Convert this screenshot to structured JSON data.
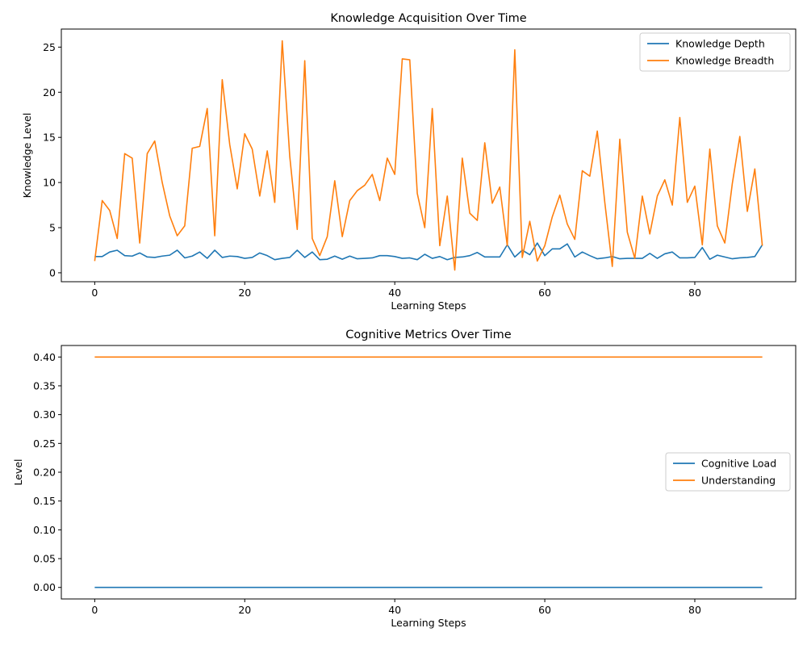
{
  "chart_data": [
    {
      "type": "line",
      "title": "Knowledge Acquisition Over Time",
      "xlabel": "Learning Steps",
      "ylabel": "Knowledge Level",
      "xlim": [
        -4.45,
        93.45
      ],
      "ylim": [
        -0.99,
        27.0
      ],
      "xticks": [
        0,
        20,
        40,
        60,
        80
      ],
      "yticks": [
        0,
        5,
        10,
        15,
        20,
        25
      ],
      "grid": false,
      "legend_position": "top-right",
      "x": [
        0,
        1,
        2,
        3,
        4,
        5,
        6,
        7,
        8,
        9,
        10,
        11,
        12,
        13,
        14,
        15,
        16,
        17,
        18,
        19,
        20,
        21,
        22,
        23,
        24,
        25,
        26,
        27,
        28,
        29,
        30,
        31,
        32,
        33,
        34,
        35,
        36,
        37,
        38,
        39,
        40,
        41,
        42,
        43,
        44,
        45,
        46,
        47,
        48,
        49,
        50,
        51,
        52,
        53,
        54,
        55,
        56,
        57,
        58,
        59,
        60,
        61,
        62,
        63,
        64,
        65,
        66,
        67,
        68,
        69,
        70,
        71,
        72,
        73,
        74,
        75,
        76,
        77,
        78,
        79,
        80,
        81,
        82,
        83,
        84,
        85,
        86,
        87,
        88,
        89
      ],
      "series": [
        {
          "name": "Knowledge Depth",
          "color": "#1f77b4",
          "values": [
            1.8,
            1.8,
            2.3,
            2.5,
            1.9,
            1.85,
            2.2,
            1.75,
            1.7,
            1.85,
            1.95,
            2.5,
            1.65,
            1.85,
            2.3,
            1.6,
            2.5,
            1.7,
            1.85,
            1.8,
            1.6,
            1.7,
            2.2,
            1.9,
            1.45,
            1.6,
            1.7,
            2.5,
            1.7,
            2.3,
            1.45,
            1.5,
            1.85,
            1.5,
            1.85,
            1.55,
            1.6,
            1.65,
            1.9,
            1.9,
            1.8,
            1.6,
            1.65,
            1.45,
            2.05,
            1.6,
            1.8,
            1.45,
            1.7,
            1.75,
            1.9,
            2.25,
            1.75,
            1.75,
            1.75,
            3.1,
            1.75,
            2.5,
            2.0,
            3.3,
            1.9,
            2.65,
            2.65,
            3.2,
            1.75,
            2.3,
            1.9,
            1.55,
            1.65,
            1.8,
            1.55,
            1.6,
            1.6,
            1.6,
            2.15,
            1.6,
            2.1,
            2.3,
            1.65,
            1.65,
            1.7,
            2.8,
            1.5,
            1.95,
            1.75,
            1.55,
            1.65,
            1.7,
            1.8,
            3.1
          ]
        },
        {
          "name": "Knowledge Breadth",
          "color": "#ff7f0e",
          "values": [
            1.3,
            8.0,
            6.9,
            3.8,
            13.2,
            12.7,
            3.3,
            13.2,
            14.6,
            10.0,
            6.3,
            4.1,
            5.2,
            13.8,
            14.0,
            18.2,
            4.1,
            21.4,
            14.2,
            9.3,
            15.4,
            13.7,
            8.5,
            13.5,
            7.8,
            25.7,
            12.9,
            4.8,
            23.5,
            3.8,
            1.9,
            4.0,
            10.2,
            4.0,
            8.0,
            9.1,
            9.7,
            10.9,
            8.0,
            12.7,
            10.9,
            23.7,
            23.6,
            8.8,
            5.0,
            18.2,
            3.0,
            8.5,
            0.3,
            12.7,
            6.6,
            5.8,
            14.4,
            7.7,
            9.5,
            3.0,
            24.7,
            1.7,
            5.7,
            1.3,
            3.0,
            6.2,
            8.6,
            5.4,
            3.7,
            11.3,
            10.7,
            15.7,
            7.8,
            0.7,
            14.8,
            4.5,
            1.6,
            8.5,
            4.3,
            8.5,
            10.3,
            7.5,
            17.2,
            7.8,
            9.6,
            3.1,
            13.7,
            5.2,
            3.3,
            9.9,
            15.1,
            6.8,
            11.5,
            3.0
          ]
        }
      ]
    },
    {
      "type": "line",
      "title": "Cognitive Metrics Over Time",
      "xlabel": "Learning Steps",
      "ylabel": "Level",
      "xlim": [
        -4.45,
        93.45
      ],
      "ylim": [
        -0.02,
        0.42
      ],
      "xticks": [
        0,
        20,
        40,
        60,
        80
      ],
      "yticks": [
        0.0,
        0.05,
        0.1,
        0.15,
        0.2,
        0.25,
        0.3,
        0.35,
        0.4
      ],
      "ytick_labels": [
        "0.00",
        "0.05",
        "0.10",
        "0.15",
        "0.20",
        "0.25",
        "0.30",
        "0.35",
        "0.40"
      ],
      "grid": false,
      "legend_position": "center-right",
      "x": [
        0,
        89
      ],
      "series": [
        {
          "name": "Cognitive Load",
          "color": "#1f77b4",
          "values": [
            0.0,
            0.0
          ]
        },
        {
          "name": "Understanding",
          "color": "#ff7f0e",
          "values": [
            0.4,
            0.4
          ]
        }
      ]
    }
  ]
}
